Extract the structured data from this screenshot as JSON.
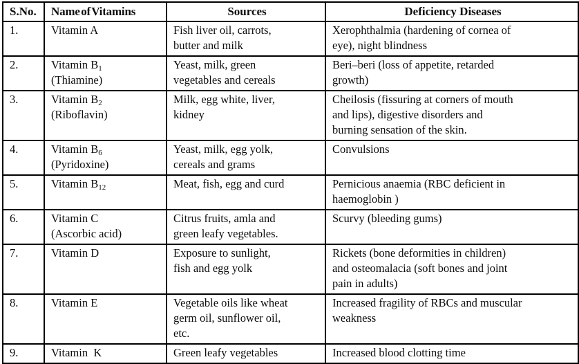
{
  "table": {
    "headers": {
      "sno": "S.No.",
      "name": "Name of Vitamins",
      "sources": "Sources",
      "deficiency": "Deficiency Diseases"
    },
    "rows": [
      {
        "sno": "1.",
        "vitamin_base": "Vitamin A",
        "vitamin_sub": "",
        "vitamin_line2": "",
        "sources": "Fish liver oil, carrots,\nbutter and milk",
        "deficiency": "Xerophthalmia (hardening of cornea of\neye), night blindness"
      },
      {
        "sno": "2.",
        "vitamin_base": "Vitamin B",
        "vitamin_sub": "1",
        "vitamin_line2": "(Thiamine)",
        "sources": "Yeast, milk, green\nvegetables and cereals",
        "deficiency": "Beri–beri (loss of appetite, retarded\ngrowth)"
      },
      {
        "sno": "3.",
        "vitamin_base": "Vitamin B",
        "vitamin_sub": "2",
        "vitamin_line2": "(Riboflavin)",
        "sources": "Milk, egg white, liver,\nkidney",
        "deficiency": "Cheilosis (fissuring at corners of mouth\nand lips), digestive disorders and\nburning sensation of the skin."
      },
      {
        "sno": "4.",
        "vitamin_base": "Vitamin B",
        "vitamin_sub": "6",
        "vitamin_line2": "(Pyridoxine)",
        "sources": "Yeast, milk, egg yolk,\ncereals and grams",
        "deficiency": "Convulsions"
      },
      {
        "sno": "5.",
        "vitamin_base": "Vitamin B",
        "vitamin_sub": "12",
        "vitamin_line2": "",
        "sources": "Meat, fish, egg and curd",
        "deficiency": "Pernicious anaemia (RBC deficient in\nhaemoglobin )"
      },
      {
        "sno": "6.",
        "vitamin_base": "Vitamin C",
        "vitamin_sub": "",
        "vitamin_line2": "(Ascorbic acid)",
        "sources": "Citrus fruits, amla and\ngreen leafy vegetables.",
        "deficiency": "Scurvy (bleeding gums)"
      },
      {
        "sno": "7.",
        "vitamin_base": "Vitamin D",
        "vitamin_sub": "",
        "vitamin_line2": "",
        "sources": "Exposure to sunlight,\nfish and egg yolk",
        "deficiency": "Rickets (bone deformities in children)\nand osteomalacia (soft bones and joint\npain in adults)"
      },
      {
        "sno": "8.",
        "vitamin_base": "Vitamin E",
        "vitamin_sub": "",
        "vitamin_line2": "",
        "sources": "Vegetable oils like wheat\ngerm oil, sunflower oil,\netc.",
        "deficiency": "Increased fragility of RBCs and muscular\nweakness"
      },
      {
        "sno": "9.",
        "vitamin_base": "Vitamin  K",
        "vitamin_sub": "",
        "vitamin_line2": "",
        "sources": "Green leafy vegetables",
        "deficiency": "Increased blood clotting time"
      }
    ],
    "colors": {
      "border": "#000000",
      "text": "#0d0d0d",
      "background": "#ffffff"
    }
  }
}
